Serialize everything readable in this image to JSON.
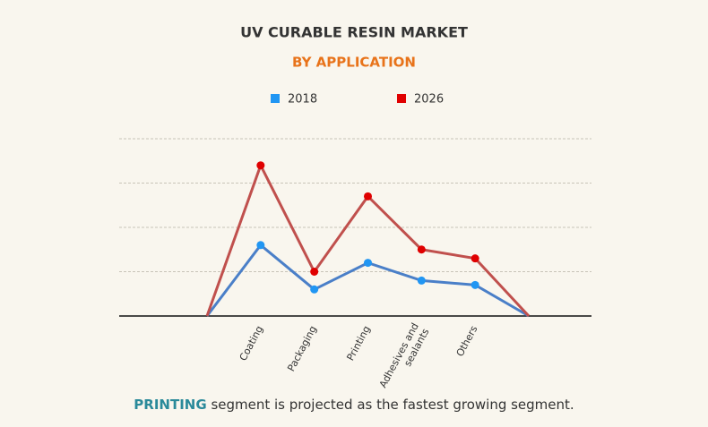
{
  "chart_data": {
    "type": "line",
    "title": "UV CURABLE RESIN MARKET",
    "subtitle": "BY APPLICATION",
    "categories": [
      null,
      "Coating",
      "Packaging",
      "Printing",
      "Adhesives and sealants",
      "Others",
      null
    ],
    "series": [
      {
        "name": "2018",
        "color": "#4a7fc8",
        "marker_color": "#2196f3",
        "values": [
          0,
          1.6,
          0.6,
          1.2,
          0.8,
          0.7,
          0
        ]
      },
      {
        "name": "2026",
        "color": "#c0504d",
        "marker_color": "#e00000",
        "values": [
          0,
          3.4,
          1.0,
          2.7,
          1.5,
          1.3,
          0
        ]
      }
    ],
    "ylim": [
      0,
      4
    ],
    "grid_lines": [
      1,
      2,
      3,
      4
    ],
    "grid": true,
    "legend": "top",
    "note": {
      "highlight": "PRINTING",
      "text": "segment is projected as the fastest growing segment."
    }
  }
}
